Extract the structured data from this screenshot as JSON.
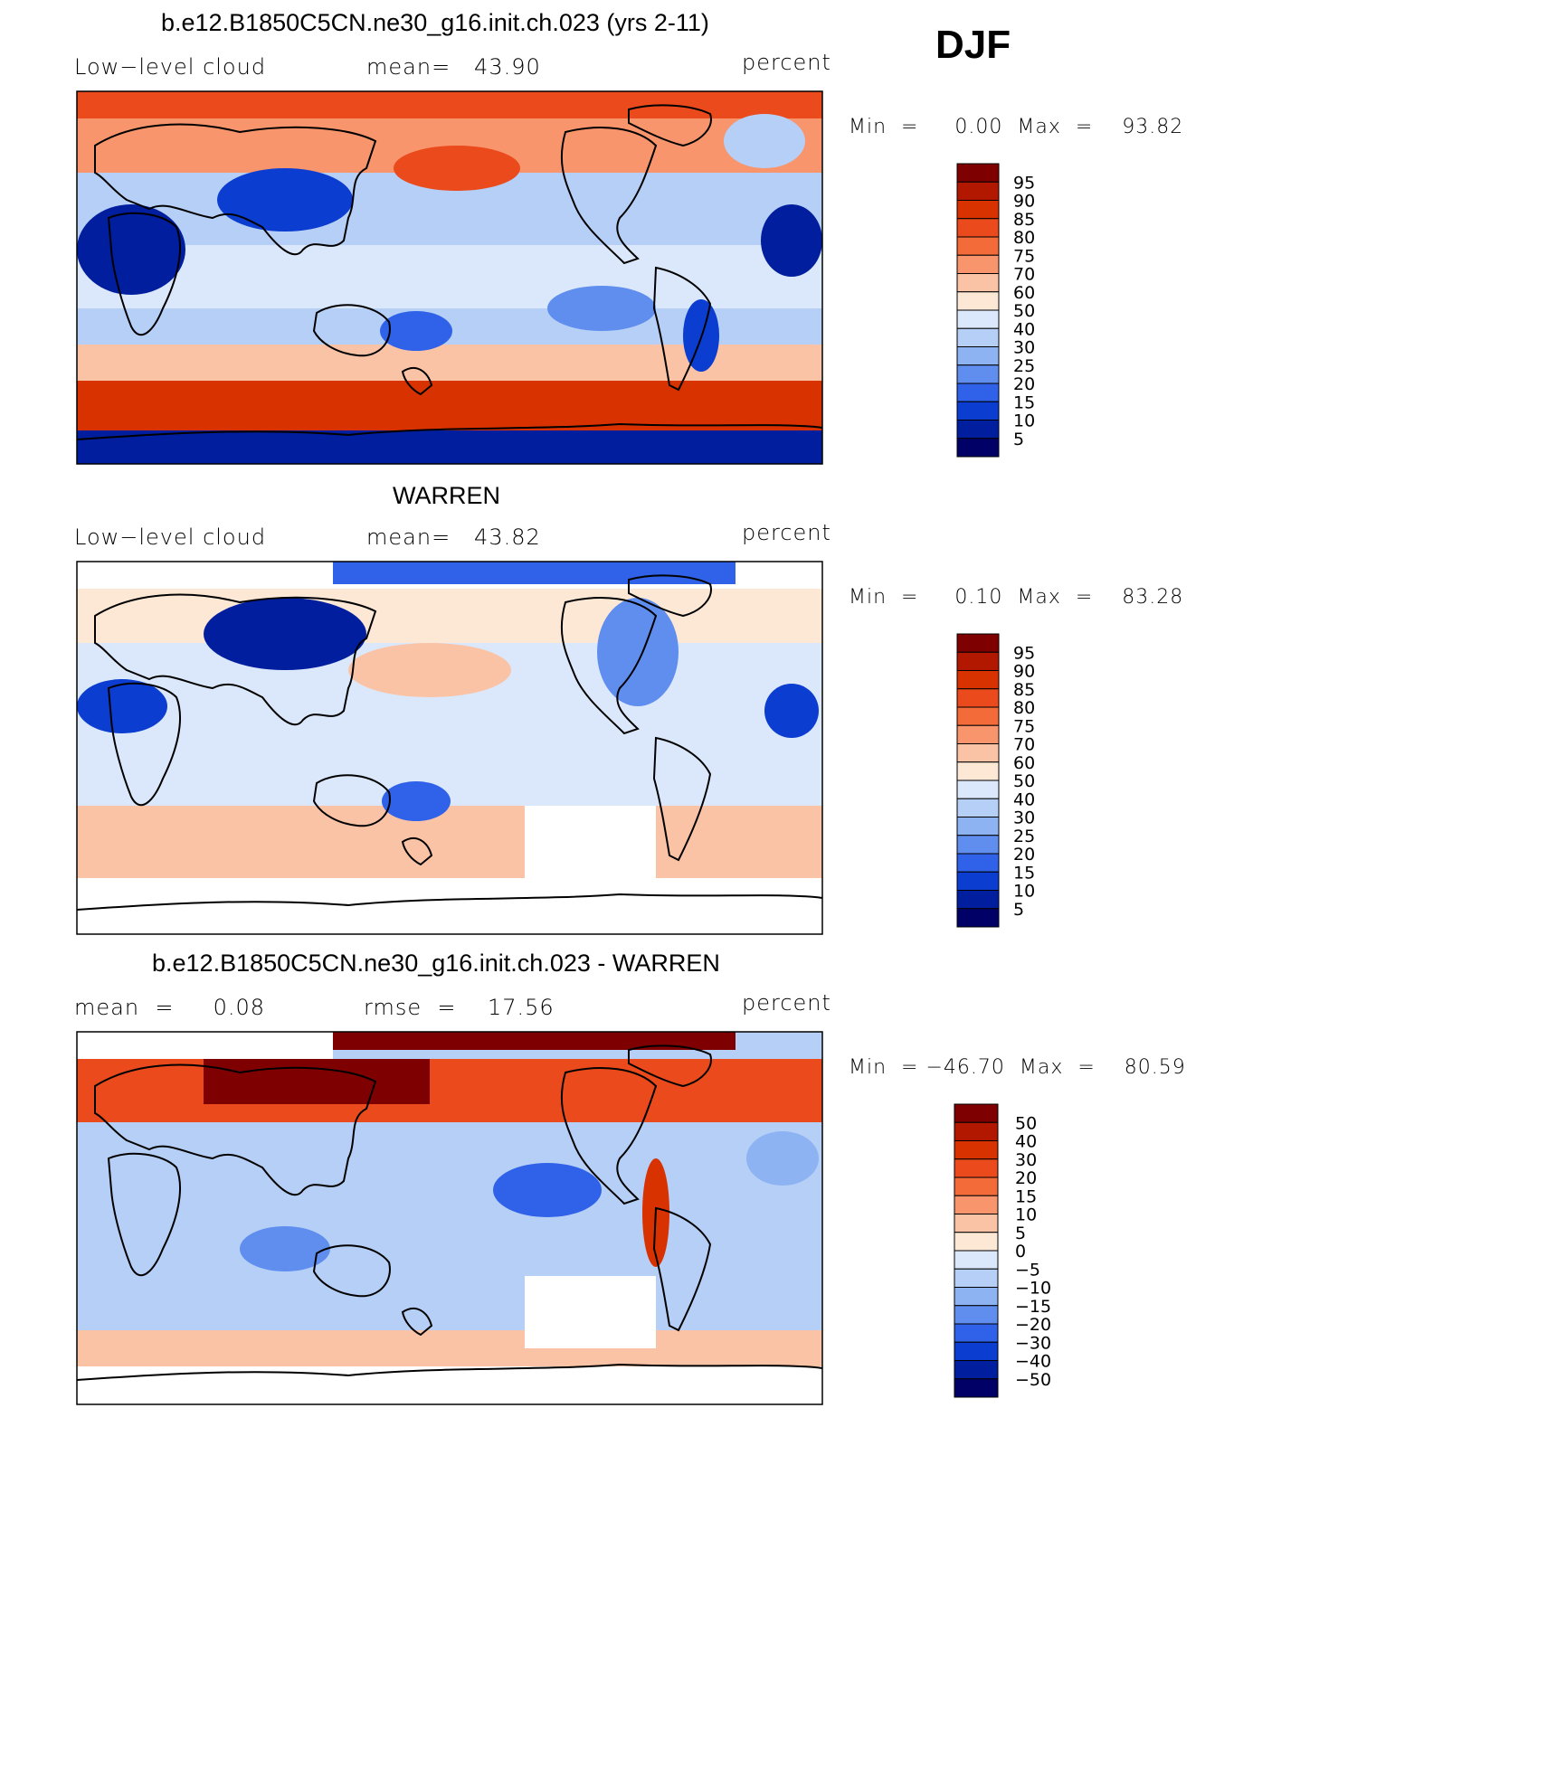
{
  "season": "DJF",
  "units_label": "percent",
  "panels": [
    {
      "title": "b.e12.B1850C5CN.ne30_g16.init.ch.023 (yrs 2-11)",
      "left_label": "Low−level cloud",
      "center_label": "mean=   43.90",
      "right_label": "percent",
      "min_max": "Min  =     0.00  Max  =    93.82",
      "colorbar_levels": [
        "95",
        "90",
        "85",
        "80",
        "75",
        "70",
        "60",
        "50",
        "40",
        "30",
        "25",
        "20",
        "15",
        "10",
        "5"
      ]
    },
    {
      "title": "WARREN",
      "left_label": "Low−level cloud",
      "center_label": "mean=   43.82",
      "right_label": "percent",
      "min_max": "Min  =     0.10  Max  =    83.28",
      "colorbar_levels": [
        "95",
        "90",
        "85",
        "80",
        "75",
        "70",
        "60",
        "50",
        "40",
        "30",
        "25",
        "20",
        "15",
        "10",
        "5"
      ]
    },
    {
      "title": "b.e12.B1850C5CN.ne30_g16.init.ch.023 - WARREN",
      "left_label": "mean  =     0.08",
      "center_label": "rmse  =    17.56",
      "right_label": "percent",
      "min_max": "Min  = −46.70  Max  =    80.59",
      "colorbar_levels": [
        "50",
        "40",
        "30",
        "20",
        "15",
        "10",
        "5",
        "0",
        "−5",
        "−10",
        "−15",
        "−20",
        "−30",
        "−40",
        "−50"
      ]
    }
  ],
  "colors": {
    "abs_scale": [
      "#7f0000",
      "#b21800",
      "#d83200",
      "#ea4a1c",
      "#f46b3a",
      "#f8956c",
      "#fbc3a6",
      "#fde8d6",
      "#dbe8fb",
      "#b5cff7",
      "#8db3f3",
      "#5f8eef",
      "#2f62e8",
      "#0b3dd0",
      "#001e9e",
      "#000066"
    ],
    "diff_scale": [
      "#7f0000",
      "#b21800",
      "#d83200",
      "#ea4a1c",
      "#f46b3a",
      "#f8956c",
      "#fbc3a6",
      "#fde8d6",
      "#dbe8fb",
      "#b5cff7",
      "#8db3f3",
      "#5f8eef",
      "#2f62e8",
      "#0b3dd0",
      "#001e9e",
      "#000066"
    ]
  }
}
